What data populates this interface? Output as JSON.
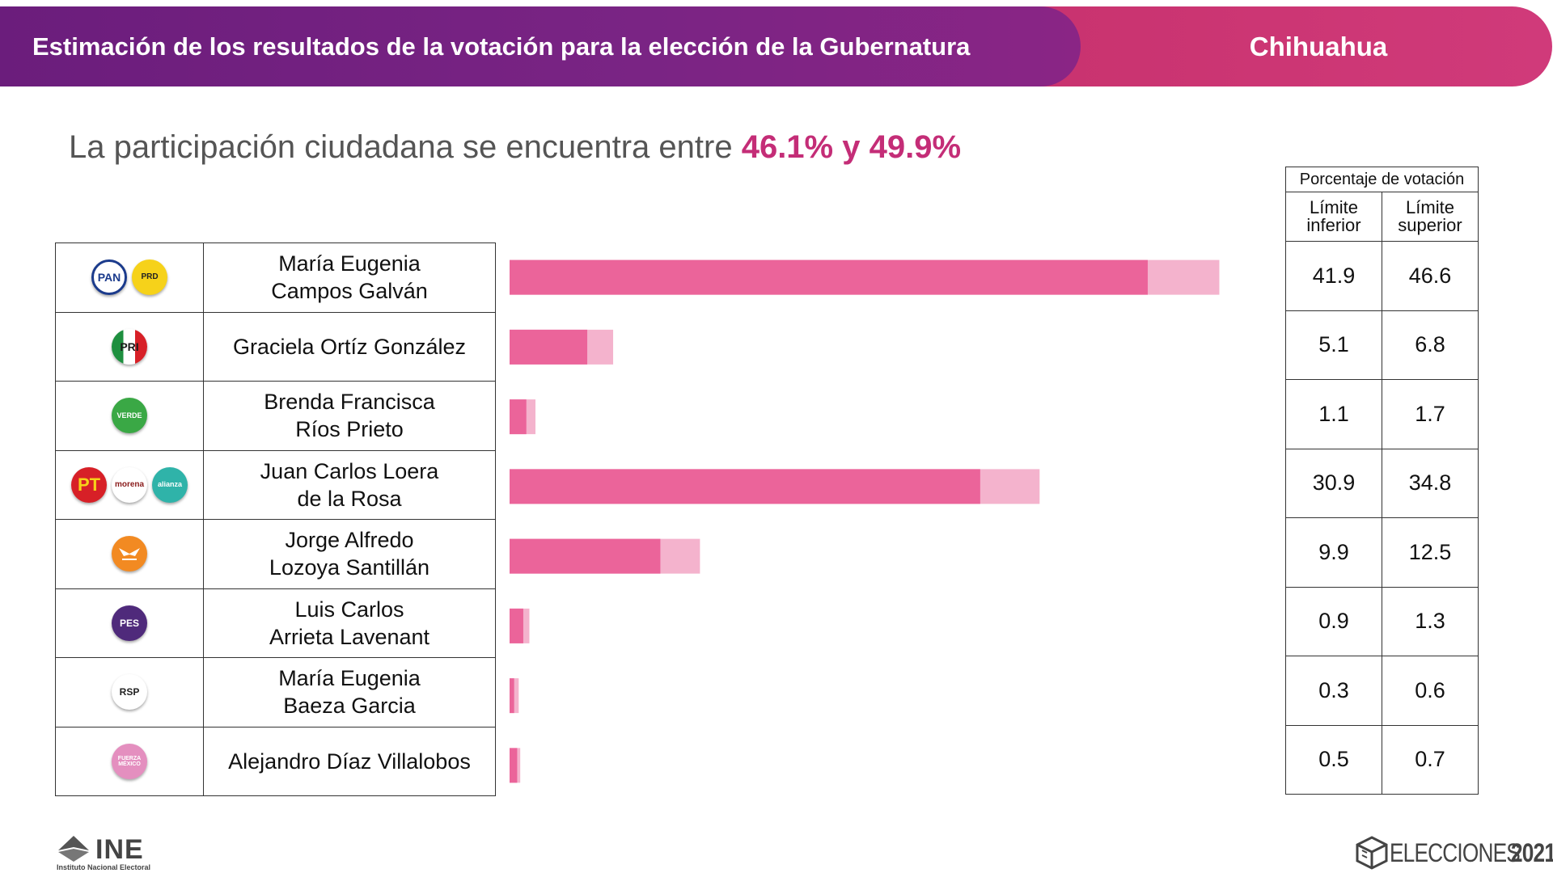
{
  "header": {
    "title": "Estimación de los resultados de la votación para la elección de la Gubernatura",
    "state": "Chihuahua"
  },
  "participation": {
    "prefix": "La participación ciudadana se encuentra entre",
    "range": "46.1% y 49.9%"
  },
  "table": {
    "group_header": "Porcentaje de votación",
    "col_lower": "Límite inferior",
    "col_upper": "Límite superior"
  },
  "candidates": [
    {
      "line1": "María Eugenia",
      "line2": "Campos Galván",
      "lower": "41.9",
      "upper": "46.6",
      "logos": [
        {
          "icon": "pan-logo",
          "text": "PAN"
        },
        {
          "icon": "prd-logo",
          "text": "PRD"
        }
      ]
    },
    {
      "line1": "Graciela Ortíz González",
      "line2": "",
      "lower": "5.1",
      "upper": "6.8",
      "logos": [
        {
          "icon": "pri-logo",
          "text": "PRI"
        }
      ]
    },
    {
      "line1": "Brenda Francisca",
      "line2": "Ríos Prieto",
      "lower": "1.1",
      "upper": "1.7",
      "logos": [
        {
          "icon": "verde-logo",
          "text": "VERDE"
        }
      ]
    },
    {
      "line1": "Juan Carlos Loera",
      "line2": "de la Rosa",
      "lower": "30.9",
      "upper": "34.8",
      "logos": [
        {
          "icon": "pt-logo",
          "text": "PT"
        },
        {
          "icon": "morena-logo",
          "text": "morena"
        },
        {
          "icon": "nueva-alianza-logo",
          "text": "alianza"
        }
      ]
    },
    {
      "line1": "Jorge Alfredo",
      "line2": "Lozoya Santillán",
      "lower": "9.9",
      "upper": "12.5",
      "logos": [
        {
          "icon": "movimiento-ciudadano-logo",
          "text": ""
        }
      ]
    },
    {
      "line1": "Luis Carlos",
      "line2": "Arrieta Lavenant",
      "lower": "0.9",
      "upper": "1.3",
      "logos": [
        {
          "icon": "pes-logo",
          "text": "PES"
        }
      ]
    },
    {
      "line1": "María Eugenia",
      "line2": "Baeza Garcia",
      "lower": "0.3",
      "upper": "0.6",
      "logos": [
        {
          "icon": "rsp-logo",
          "text": "RSP"
        }
      ]
    },
    {
      "line1": "Alejandro Díaz Villalobos",
      "line2": "",
      "lower": "0.5",
      "upper": "0.7",
      "logos": [
        {
          "icon": "fuerza-mexico-logo",
          "text": "FUERZA MÉXICO"
        }
      ]
    }
  ],
  "chart_data": {
    "type": "bar",
    "orientation": "horizontal",
    "categories": [
      "María Eugenia Campos Galván",
      "Graciela Ortíz González",
      "Brenda Francisca Ríos Prieto",
      "Juan Carlos Loera de la Rosa",
      "Jorge Alfredo Lozoya Santillán",
      "Luis Carlos Arrieta Lavenant",
      "María Eugenia Baeza Garcia",
      "Alejandro Díaz Villalobos"
    ],
    "series": [
      {
        "values": [
          41.9,
          5.1,
          1.1,
          30.9,
          9.9,
          0.9,
          0.3,
          0.5
        ],
        "color": "#eb649a"
      },
      {
        "values": [
          46.6,
          6.8,
          1.7,
          34.8,
          12.5,
          1.3,
          0.6,
          0.7
        ],
        "color": "#f4b3cd"
      }
    ],
    "xlim": [
      0,
      47
    ],
    "grid": false
  },
  "footer": {
    "ine": "INE",
    "ine_sub": "Instituto Nacional Electoral",
    "elecciones_word": "ELECCIONES",
    "elecciones_year": "2021"
  },
  "colors": {
    "banner_purple": "#7a2484",
    "banner_pink": "#c8326e",
    "highlight": "#c42d77",
    "bar_lower": "#eb649a",
    "bar_upper": "#f4b3cd"
  }
}
